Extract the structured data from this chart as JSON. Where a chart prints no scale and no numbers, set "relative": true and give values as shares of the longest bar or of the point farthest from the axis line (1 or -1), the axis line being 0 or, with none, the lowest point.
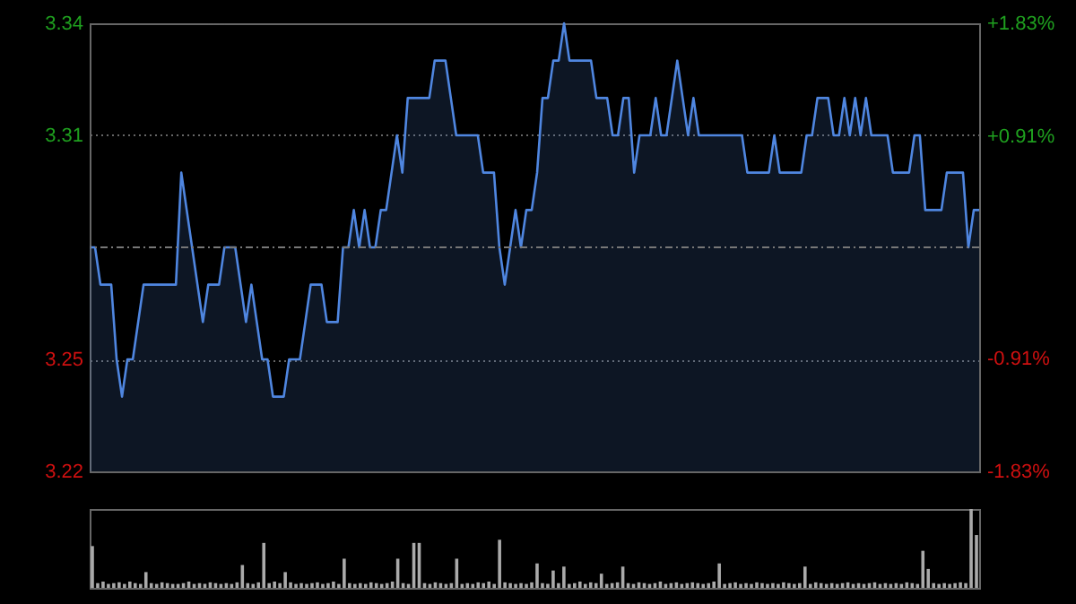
{
  "chart_data": [
    {
      "type": "area",
      "tick_labels": "y",
      "grid": "y",
      "categories": [
        null,
        null,
        null,
        null,
        null,
        null,
        null,
        null,
        null,
        null,
        null,
        null,
        null,
        null,
        null,
        null,
        null,
        null,
        null,
        null,
        null,
        null,
        null,
        null,
        null,
        null,
        null,
        null,
        null,
        null,
        null,
        null,
        null,
        null,
        null,
        null,
        null,
        null,
        null,
        null,
        null,
        null,
        null,
        null,
        null,
        null,
        null,
        null,
        null,
        null,
        null,
        null,
        null,
        null,
        null,
        null,
        null,
        null,
        null,
        null,
        null,
        null,
        null,
        null,
        null,
        null,
        null,
        null,
        null,
        null,
        null,
        null,
        null,
        null,
        null,
        null,
        null,
        null,
        null,
        null,
        null,
        null,
        null,
        null,
        null,
        null,
        null,
        null,
        null,
        null,
        null,
        null,
        null,
        null,
        null,
        null,
        null,
        null,
        null,
        null,
        null,
        null,
        null,
        null,
        null,
        null,
        null,
        null,
        null,
        null,
        null,
        null,
        null,
        null,
        null,
        null,
        null,
        null,
        null,
        null,
        null,
        null,
        null,
        null,
        null,
        null,
        null,
        null,
        null,
        null,
        null,
        null,
        null,
        null,
        null,
        null,
        null,
        null,
        null,
        null,
        null,
        null,
        null,
        null,
        null,
        null,
        null,
        null,
        null,
        null,
        null,
        null,
        null,
        null,
        null,
        null,
        null,
        null,
        null,
        null,
        null,
        null,
        null,
        null,
        null,
        null
      ],
      "series": [
        {
          "color": "#4f86e0",
          "values": [
            3.28,
            3.28,
            3.27,
            3.27,
            3.27,
            3.25,
            3.24,
            3.25,
            3.25,
            3.26,
            3.27,
            3.27,
            3.27,
            3.27,
            3.27,
            3.27,
            3.27,
            3.3,
            3.29,
            3.28,
            3.27,
            3.26,
            3.27,
            3.27,
            3.27,
            3.28,
            3.28,
            3.28,
            3.27,
            3.26,
            3.27,
            3.26,
            3.25,
            3.25,
            3.24,
            3.24,
            3.24,
            3.25,
            3.25,
            3.25,
            3.26,
            3.27,
            3.27,
            3.27,
            3.26,
            3.26,
            3.26,
            3.28,
            3.28,
            3.29,
            3.28,
            3.29,
            3.28,
            3.28,
            3.29,
            3.29,
            3.3,
            3.31,
            3.3,
            3.32,
            3.32,
            3.32,
            3.32,
            3.32,
            3.33,
            3.33,
            3.33,
            3.32,
            3.31,
            3.31,
            3.31,
            3.31,
            3.31,
            3.3,
            3.3,
            3.3,
            3.28,
            3.27,
            3.28,
            3.29,
            3.28,
            3.29,
            3.29,
            3.3,
            3.32,
            3.32,
            3.33,
            3.33,
            3.34,
            3.33,
            3.33,
            3.33,
            3.33,
            3.33,
            3.32,
            3.32,
            3.32,
            3.31,
            3.31,
            3.32,
            3.32,
            3.3,
            3.31,
            3.31,
            3.31,
            3.32,
            3.31,
            3.31,
            3.32,
            3.33,
            3.32,
            3.31,
            3.32,
            3.31,
            3.31,
            3.31,
            3.31,
            3.31,
            3.31,
            3.31,
            3.31,
            3.31,
            3.3,
            3.3,
            3.3,
            3.3,
            3.3,
            3.31,
            3.3,
            3.3,
            3.3,
            3.3,
            3.3,
            3.31,
            3.31,
            3.32,
            3.32,
            3.32,
            3.31,
            3.31,
            3.32,
            3.31,
            3.32,
            3.31,
            3.32,
            3.31,
            3.31,
            3.31,
            3.31,
            3.3,
            3.3,
            3.3,
            3.3,
            3.31,
            3.31,
            3.29,
            3.29,
            3.29,
            3.29,
            3.3,
            3.3,
            3.3,
            3.3,
            3.28,
            3.29,
            3.29
          ]
        }
      ],
      "ylim": [
        3.22,
        3.34
      ],
      "yticks": [
        3.34,
        3.31,
        3.25,
        3.22
      ],
      "y2lim": [
        -1.83,
        1.83
      ],
      "y2ticks": [
        {
          "value": 1.83,
          "label": "+1.83%"
        },
        {
          "value": 0.91,
          "label": "+0.91%"
        },
        {
          "value": -0.91,
          "label": "-0.91%"
        },
        {
          "value": -1.83,
          "label": "-1.83%"
        }
      ],
      "ref_lines": [
        {
          "axis": "y",
          "value": 3.28,
          "color": "#777777",
          "line_style": "dashed"
        }
      ]
    },
    {
      "type": "bar",
      "relative": true,
      "tick_labels": false,
      "categories": [
        null,
        null,
        null,
        null,
        null,
        null,
        null,
        null,
        null,
        null,
        null,
        null,
        null,
        null,
        null,
        null,
        null,
        null,
        null,
        null,
        null,
        null,
        null,
        null,
        null,
        null,
        null,
        null,
        null,
        null,
        null,
        null,
        null,
        null,
        null,
        null,
        null,
        null,
        null,
        null,
        null,
        null,
        null,
        null,
        null,
        null,
        null,
        null,
        null,
        null,
        null,
        null,
        null,
        null,
        null,
        null,
        null,
        null,
        null,
        null,
        null,
        null,
        null,
        null,
        null,
        null,
        null,
        null,
        null,
        null,
        null,
        null,
        null,
        null,
        null,
        null,
        null,
        null,
        null,
        null,
        null,
        null,
        null,
        null,
        null,
        null,
        null,
        null,
        null,
        null,
        null,
        null,
        null,
        null,
        null,
        null,
        null,
        null,
        null,
        null,
        null,
        null,
        null,
        null,
        null,
        null,
        null,
        null,
        null,
        null,
        null,
        null,
        null,
        null,
        null,
        null,
        null,
        null,
        null,
        null,
        null,
        null,
        null,
        null,
        null,
        null,
        null,
        null,
        null,
        null,
        null,
        null,
        null,
        null,
        null,
        null,
        null,
        null,
        null,
        null,
        null,
        null,
        null,
        null,
        null,
        null,
        null,
        null,
        null,
        null,
        null,
        null,
        null,
        null,
        null,
        null,
        null,
        null,
        null,
        null,
        null,
        null,
        null,
        null,
        null,
        null
      ],
      "series": [
        {
          "color": "#aaaaaa",
          "values": [
            0.53,
            0.06,
            0.08,
            0.05,
            0.06,
            0.07,
            0.05,
            0.08,
            0.06,
            0.05,
            0.2,
            0.06,
            0.05,
            0.07,
            0.06,
            0.05,
            0.05,
            0.06,
            0.08,
            0.05,
            0.06,
            0.05,
            0.07,
            0.06,
            0.05,
            0.06,
            0.05,
            0.07,
            0.29,
            0.06,
            0.05,
            0.07,
            0.57,
            0.06,
            0.08,
            0.06,
            0.2,
            0.07,
            0.05,
            0.06,
            0.05,
            0.06,
            0.07,
            0.05,
            0.06,
            0.08,
            0.05,
            0.37,
            0.06,
            0.05,
            0.06,
            0.05,
            0.07,
            0.06,
            0.05,
            0.06,
            0.08,
            0.37,
            0.06,
            0.05,
            0.57,
            0.57,
            0.06,
            0.05,
            0.07,
            0.06,
            0.05,
            0.06,
            0.37,
            0.05,
            0.06,
            0.05,
            0.07,
            0.06,
            0.08,
            0.05,
            0.61,
            0.07,
            0.06,
            0.05,
            0.06,
            0.05,
            0.07,
            0.31,
            0.06,
            0.05,
            0.22,
            0.06,
            0.27,
            0.05,
            0.06,
            0.08,
            0.05,
            0.07,
            0.06,
            0.18,
            0.05,
            0.06,
            0.07,
            0.27,
            0.06,
            0.05,
            0.07,
            0.06,
            0.05,
            0.06,
            0.08,
            0.05,
            0.06,
            0.07,
            0.05,
            0.06,
            0.07,
            0.06,
            0.05,
            0.06,
            0.08,
            0.31,
            0.05,
            0.06,
            0.07,
            0.05,
            0.06,
            0.05,
            0.07,
            0.06,
            0.05,
            0.06,
            0.05,
            0.07,
            0.06,
            0.05,
            0.06,
            0.27,
            0.05,
            0.07,
            0.06,
            0.05,
            0.06,
            0.05,
            0.06,
            0.07,
            0.05,
            0.06,
            0.05,
            0.06,
            0.07,
            0.05,
            0.06,
            0.05,
            0.06,
            0.05,
            0.07,
            0.06,
            0.05,
            0.47,
            0.24,
            0.06,
            0.05,
            0.06,
            0.05,
            0.06,
            0.07,
            0.06,
            1,
            0.67
          ]
        }
      ]
    }
  ]
}
